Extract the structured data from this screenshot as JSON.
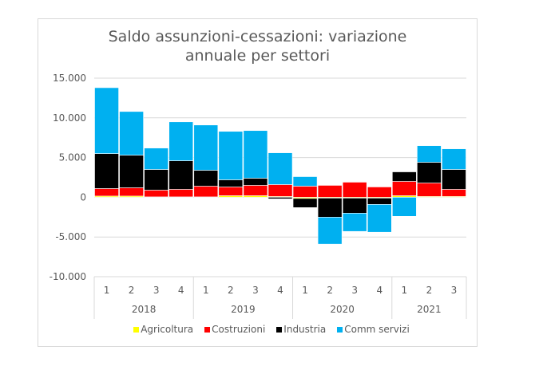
{
  "chart_data": {
    "type": "bar",
    "stacked": true,
    "title": "Saldo assunzioni-cessazioni: variazione annuale per settori",
    "title_lines": [
      "Saldo assunzioni-cessazioni: variazione",
      "annuale per settori"
    ],
    "xlabel": "",
    "ylabel": "",
    "ylim": [
      -10000,
      15000
    ],
    "yticks": [
      15000,
      10000,
      5000,
      0,
      -5000,
      -10000
    ],
    "ytick_labels": [
      "15.000",
      "10.000",
      "5.000",
      "0",
      "-5.000",
      "-10.000"
    ],
    "grid": true,
    "legend_position": "bottom",
    "categories": [
      "1",
      "2",
      "3",
      "4",
      "1",
      "2",
      "3",
      "4",
      "1",
      "2",
      "3",
      "4",
      "1",
      "2",
      "3"
    ],
    "category_groups": [
      {
        "label": "2018",
        "count": 4
      },
      {
        "label": "2019",
        "count": 4
      },
      {
        "label": "2020",
        "count": 4
      },
      {
        "label": "2021",
        "count": 3
      }
    ],
    "series": [
      {
        "name": "Agricoltura",
        "color": "#ffff00",
        "values": [
          150,
          150,
          50,
          50,
          50,
          200,
          200,
          100,
          -150,
          -100,
          -100,
          -100,
          200,
          100,
          100
        ]
      },
      {
        "name": "Costruzioni",
        "color": "#ff0000",
        "values": [
          950,
          1050,
          850,
          950,
          1350,
          1100,
          1300,
          1500,
          1400,
          1500,
          1900,
          1300,
          1800,
          1700,
          900
        ]
      },
      {
        "name": "Industria",
        "color": "#000000",
        "values": [
          4400,
          4100,
          2600,
          3600,
          2000,
          900,
          900,
          -200,
          -1150,
          -2400,
          -1900,
          -800,
          1200,
          2600,
          2500
        ]
      },
      {
        "name": "Comm servizi",
        "color": "#00b0f0",
        "values": [
          8300,
          5500,
          2700,
          4900,
          5700,
          6100,
          6000,
          4000,
          1200,
          -3400,
          -2300,
          -3500,
          -2400,
          2100,
          2600
        ]
      }
    ]
  }
}
